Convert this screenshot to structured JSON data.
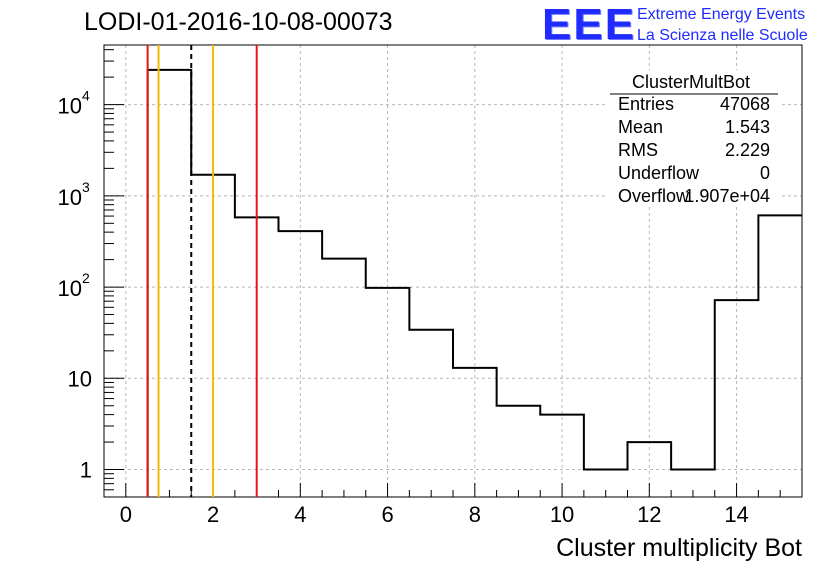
{
  "chart_data": {
    "type": "bar",
    "title": "LODI-01-2016-10-08-00073",
    "xlabel": "Cluster multiplicity Bot",
    "ylabel": "",
    "log_y": true,
    "grid": true,
    "xlim": [
      -0.5,
      15.5
    ],
    "ylim": [
      0.5,
      45000
    ],
    "x_ticks": [
      0,
      2,
      4,
      6,
      8,
      10,
      12,
      14
    ],
    "y_ticks": [
      {
        "value": 1,
        "label": "1"
      },
      {
        "value": 10,
        "label": "10"
      },
      {
        "value": 100,
        "label": "10",
        "exp": "2"
      },
      {
        "value": 1000,
        "label": "10",
        "exp": "3"
      },
      {
        "value": 10000,
        "label": "10",
        "exp": "4"
      }
    ],
    "bins": [
      {
        "low": 0.5,
        "high": 1.5,
        "value": 24000
      },
      {
        "low": 1.5,
        "high": 2.5,
        "value": 1700
      },
      {
        "low": 2.5,
        "high": 3.5,
        "value": 580
      },
      {
        "low": 3.5,
        "high": 4.5,
        "value": 410
      },
      {
        "low": 4.5,
        "high": 5.5,
        "value": 205
      },
      {
        "low": 5.5,
        "high": 6.5,
        "value": 98
      },
      {
        "low": 6.5,
        "high": 7.5,
        "value": 34
      },
      {
        "low": 7.5,
        "high": 8.5,
        "value": 13
      },
      {
        "low": 8.5,
        "high": 9.5,
        "value": 5
      },
      {
        "low": 9.5,
        "high": 10.5,
        "value": 4
      },
      {
        "low": 10.5,
        "high": 11.5,
        "value": 1
      },
      {
        "low": 11.5,
        "high": 12.5,
        "value": 2
      },
      {
        "low": 12.5,
        "high": 13.5,
        "value": 1
      },
      {
        "low": 13.5,
        "high": 14.5,
        "value": 72
      },
      {
        "low": 14.5,
        "high": 15.5,
        "value": 610
      }
    ],
    "vertical_lines": [
      {
        "x": 0.5,
        "color": "#e8141c",
        "style": "solid"
      },
      {
        "x": 0.75,
        "color": "#f5b800",
        "style": "solid"
      },
      {
        "x": 1.5,
        "color": "#000000",
        "style": "dashed"
      },
      {
        "x": 2.0,
        "color": "#f5b800",
        "style": "solid"
      },
      {
        "x": 3.0,
        "color": "#e8141c",
        "style": "solid"
      }
    ],
    "stats": {
      "name": "ClusterMultBot",
      "rows": [
        {
          "label": "Entries",
          "value": "47068"
        },
        {
          "label": "Mean",
          "value": "1.543"
        },
        {
          "label": "RMS",
          "value": "2.229"
        },
        {
          "label": "Underflow",
          "value": "0"
        },
        {
          "label": "Overflow",
          "value": "1.907e+04"
        }
      ]
    }
  },
  "logo": {
    "mark": "EEE",
    "line1": "Extreme Energy Events",
    "line2": "La Scienza nelle Scuole",
    "color": "#1f2bff"
  }
}
